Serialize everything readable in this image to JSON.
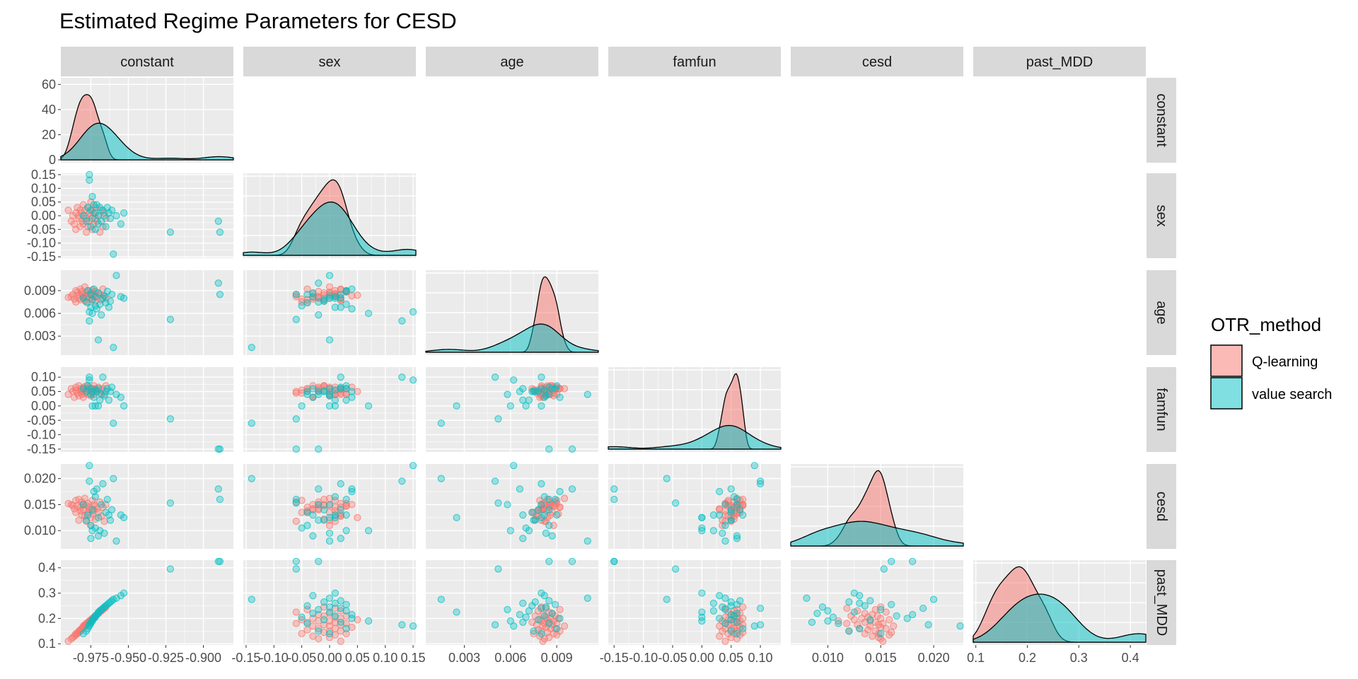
{
  "chart_data": {
    "type": "scatter",
    "title": "Estimated Regime Parameters for CESD",
    "variables": [
      "constant",
      "sex",
      "age",
      "famfun",
      "cesd",
      "past_MDD"
    ],
    "series_names": [
      "Q-learning",
      "value search"
    ],
    "legend": {
      "title": "OTR_method",
      "placement": "right",
      "entries": [
        "Q-learning",
        "value search"
      ]
    },
    "colors": {
      "Q-learning": "#F8766D",
      "value search": "#00BFC4",
      "panel_bg": "#EBEBEB",
      "strip_bg": "#D9D9D9",
      "grid": "#FFFFFF"
    },
    "grid": true,
    "layout_note": "lower-triangle scatter matrix with density curves on diagonal",
    "axes": {
      "constant": {
        "range": [
          -0.995,
          -0.88
        ],
        "ticks": [
          -0.975,
          -0.95,
          -0.925,
          -0.9
        ],
        "tick_labels": [
          "-0.975",
          "-0.950",
          "-0.925",
          "-0.900"
        ]
      },
      "sex": {
        "range": [
          -0.155,
          0.155
        ],
        "ticks": [
          -0.15,
          -0.1,
          -0.05,
          0.0,
          0.05,
          0.1,
          0.15
        ],
        "tick_labels": [
          "-0.15",
          "-0.10",
          "-0.05",
          "0.00",
          "0.05",
          "0.10",
          "0.15"
        ]
      },
      "age": {
        "range": [
          0.0005,
          0.0117
        ],
        "ticks": [
          0.003,
          0.006,
          0.009
        ],
        "tick_labels": [
          "0.003",
          "0.006",
          "0.009"
        ]
      },
      "famfun": {
        "range": [
          -0.16,
          0.135
        ],
        "ticks": [
          -0.15,
          -0.1,
          -0.05,
          0.0,
          0.05,
          0.1
        ],
        "tick_labels": [
          "-0.15",
          "-0.10",
          "-0.05",
          "0.00",
          "0.05",
          "0.10"
        ]
      },
      "cesd": {
        "range": [
          0.0065,
          0.0228
        ],
        "ticks": [
          0.01,
          0.015,
          0.02
        ],
        "tick_labels": [
          "0.010",
          "0.015",
          "0.020"
        ]
      },
      "past_MDD": {
        "range": [
          0.095,
          0.43
        ],
        "ticks": [
          0.1,
          0.2,
          0.3,
          0.4
        ],
        "tick_labels": [
          "0.1",
          "0.2",
          "0.3",
          "0.4"
        ]
      }
    },
    "density_axis": {
      "ticks": [
        0,
        20,
        40,
        60
      ],
      "tick_labels": [
        "0",
        "20",
        "40",
        "60"
      ],
      "range": [
        0,
        63
      ]
    },
    "points": {
      "Q-learning": [
        [
          -0.99,
          0.02,
          0.0081,
          0.04,
          0.0152,
          0.11
        ],
        [
          -0.988,
          -0.02,
          0.0082,
          0.06,
          0.015,
          0.12
        ],
        [
          -0.987,
          0.0,
          0.0085,
          0.05,
          0.0148,
          0.125
        ],
        [
          -0.986,
          -0.03,
          0.0079,
          0.03,
          0.0142,
          0.13
        ],
        [
          -0.985,
          0.01,
          0.009,
          0.065,
          0.0158,
          0.135
        ],
        [
          -0.985,
          -0.05,
          0.0075,
          0.055,
          0.0135,
          0.14
        ],
        [
          -0.984,
          0.03,
          0.0088,
          0.045,
          0.0148,
          0.14
        ],
        [
          -0.983,
          -0.01,
          0.0084,
          0.07,
          0.016,
          0.145
        ],
        [
          -0.983,
          0.0,
          0.008,
          0.035,
          0.012,
          0.15
        ],
        [
          -0.982,
          0.02,
          0.0092,
          0.06,
          0.0145,
          0.15
        ],
        [
          -0.982,
          -0.04,
          0.0078,
          0.05,
          0.0138,
          0.155
        ],
        [
          -0.981,
          0.01,
          0.0086,
          0.04,
          0.013,
          0.16
        ],
        [
          -0.981,
          -0.02,
          0.0089,
          0.055,
          0.0155,
          0.16
        ],
        [
          -0.98,
          0.04,
          0.0083,
          0.065,
          0.015,
          0.165
        ],
        [
          -0.98,
          -0.03,
          0.0081,
          0.03,
          0.014,
          0.17
        ],
        [
          -0.979,
          0.0,
          0.0095,
          0.06,
          0.0162,
          0.17
        ],
        [
          -0.979,
          0.02,
          0.0077,
          0.045,
          0.0128,
          0.175
        ],
        [
          -0.978,
          -0.01,
          0.0087,
          0.07,
          0.0148,
          0.175
        ],
        [
          -0.978,
          -0.06,
          0.0082,
          0.05,
          0.0118,
          0.18
        ],
        [
          -0.977,
          0.03,
          0.009,
          0.04,
          0.0152,
          0.18
        ],
        [
          -0.977,
          -0.04,
          0.0074,
          0.06,
          0.0135,
          0.185
        ],
        [
          -0.976,
          0.01,
          0.0085,
          0.055,
          0.0145,
          0.185
        ],
        [
          -0.976,
          -0.02,
          0.008,
          0.065,
          0.014,
          0.19
        ],
        [
          -0.975,
          0.0,
          0.0088,
          0.035,
          0.011,
          0.19
        ],
        [
          -0.975,
          0.05,
          0.0084,
          0.05,
          0.0125,
          0.195
        ],
        [
          -0.974,
          -0.05,
          0.0079,
          0.045,
          0.0158,
          0.195
        ],
        [
          -0.974,
          0.02,
          0.0091,
          0.06,
          0.0132,
          0.2
        ],
        [
          -0.973,
          -0.03,
          0.0086,
          0.07,
          0.015,
          0.2
        ],
        [
          -0.973,
          0.01,
          0.0083,
          0.04,
          0.0138,
          0.205
        ],
        [
          -0.972,
          -0.01,
          0.0076,
          0.055,
          0.0122,
          0.21
        ],
        [
          -0.972,
          0.03,
          0.0089,
          0.06,
          0.0147,
          0.21
        ],
        [
          -0.971,
          -0.02,
          0.0081,
          0.05,
          0.0142,
          0.215
        ],
        [
          -0.97,
          0.0,
          0.0087,
          0.065,
          0.0135,
          0.22
        ],
        [
          -0.969,
          -0.06,
          0.0085,
          0.045,
          0.0155,
          0.225
        ],
        [
          -0.968,
          0.02,
          0.0078,
          0.055,
          0.0128,
          0.23
        ],
        [
          -0.967,
          -0.04,
          0.0092,
          0.06,
          0.0145,
          0.235
        ],
        [
          -0.966,
          0.01,
          0.0083,
          0.04,
          0.0118,
          0.24
        ],
        [
          -0.965,
          -0.01,
          0.008,
          0.07,
          0.015,
          0.245
        ]
      ],
      "value search": [
        [
          -0.98,
          0.0,
          0.008,
          0.06,
          0.015,
          0.14
        ],
        [
          -0.978,
          -0.02,
          0.0075,
          0.05,
          0.012,
          0.15
        ],
        [
          -0.977,
          0.03,
          0.009,
          0.07,
          0.013,
          0.16
        ],
        [
          -0.976,
          0.15,
          0.0062,
          0.09,
          0.0225,
          0.17
        ],
        [
          -0.976,
          0.13,
          0.005,
          0.1,
          0.0195,
          0.175
        ],
        [
          -0.975,
          -0.04,
          0.0085,
          0.04,
          0.011,
          0.18
        ],
        [
          -0.975,
          0.02,
          0.0068,
          0.06,
          0.0085,
          0.185
        ],
        [
          -0.974,
          0.07,
          0.006,
          0.0,
          0.01,
          0.19
        ],
        [
          -0.974,
          -0.01,
          0.0078,
          0.05,
          0.014,
          0.195
        ],
        [
          -0.973,
          0.04,
          0.0092,
          0.03,
          0.0175,
          0.2
        ],
        [
          -0.972,
          -0.05,
          0.007,
          0.0,
          0.0105,
          0.205
        ],
        [
          -0.972,
          0.01,
          0.0082,
          0.055,
          0.0165,
          0.21
        ],
        [
          -0.971,
          0.04,
          0.0066,
          0.05,
          0.018,
          0.215
        ],
        [
          -0.97,
          -0.03,
          0.0087,
          0.06,
          0.009,
          0.22
        ],
        [
          -0.97,
          0.0,
          0.0025,
          0.0,
          0.0125,
          0.225
        ],
        [
          -0.969,
          0.03,
          0.0072,
          0.02,
          0.01,
          0.23
        ],
        [
          -0.968,
          -0.02,
          0.0058,
          0.04,
          0.015,
          0.235
        ],
        [
          -0.967,
          0.02,
          0.008,
          0.1,
          0.019,
          0.24
        ],
        [
          -0.966,
          0.0,
          0.0083,
          0.035,
          0.0095,
          0.245
        ],
        [
          -0.965,
          -0.04,
          0.0074,
          0.05,
          0.0135,
          0.25
        ],
        [
          -0.964,
          0.03,
          0.0089,
          0.06,
          0.016,
          0.255
        ],
        [
          -0.963,
          0.01,
          0.0068,
          0.02,
          0.013,
          0.26
        ],
        [
          -0.962,
          -0.01,
          0.0076,
          0.05,
          0.012,
          0.265
        ],
        [
          -0.961,
          0.02,
          0.0085,
          0.065,
          0.014,
          0.27
        ],
        [
          -0.96,
          -0.14,
          0.0015,
          -0.06,
          0.02,
          0.275
        ],
        [
          -0.958,
          0.0,
          0.011,
          0.04,
          0.008,
          0.28
        ],
        [
          -0.955,
          -0.03,
          0.0082,
          0.03,
          0.013,
          0.29
        ],
        [
          -0.953,
          0.01,
          0.008,
          0.0,
          0.0125,
          0.3
        ],
        [
          -0.922,
          -0.06,
          0.0052,
          -0.045,
          0.0153,
          0.395
        ],
        [
          -0.89,
          -0.02,
          0.01,
          -0.15,
          0.018,
          0.425
        ],
        [
          -0.889,
          -0.06,
          0.0085,
          -0.15,
          0.016,
          0.425
        ]
      ]
    }
  }
}
